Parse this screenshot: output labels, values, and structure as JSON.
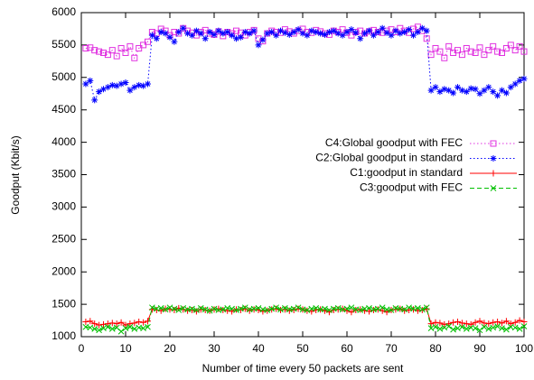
{
  "chart_data": {
    "type": "line",
    "xlabel": "Number of time every 50 packets are sent",
    "ylabel": "Goodput (Kbit/s)",
    "xlim": [
      0,
      100
    ],
    "ylim": [
      1000,
      6000
    ],
    "xticks": [
      0,
      10,
      20,
      30,
      40,
      50,
      60,
      70,
      80,
      90,
      100
    ],
    "yticks": [
      1000,
      1500,
      2000,
      2500,
      3000,
      3500,
      4000,
      4500,
      5000,
      5500,
      6000
    ],
    "legend": "upper right",
    "x": [
      1,
      2,
      3,
      4,
      5,
      6,
      7,
      8,
      9,
      10,
      11,
      12,
      13,
      14,
      15,
      16,
      17,
      18,
      19,
      20,
      21,
      22,
      23,
      24,
      25,
      26,
      27,
      28,
      29,
      30,
      31,
      32,
      33,
      34,
      35,
      36,
      37,
      38,
      39,
      40,
      41,
      42,
      43,
      44,
      45,
      46,
      47,
      48,
      49,
      50,
      51,
      52,
      53,
      54,
      55,
      56,
      57,
      58,
      59,
      60,
      61,
      62,
      63,
      64,
      65,
      66,
      67,
      68,
      69,
      70,
      71,
      72,
      73,
      74,
      75,
      76,
      77,
      78,
      79,
      80,
      81,
      82,
      83,
      84,
      85,
      86,
      87,
      88,
      89,
      90,
      91,
      92,
      93,
      94,
      95,
      96,
      97,
      98,
      99,
      100
    ],
    "series": [
      {
        "name": "C4:Global goodput with FEC",
        "color": "#e033e0",
        "dash": "dotted",
        "marker": "square",
        "values": [
          5450,
          5460,
          5420,
          5400,
          5380,
          5350,
          5420,
          5330,
          5450,
          5380,
          5480,
          5300,
          5450,
          5500,
          5550,
          5700,
          5680,
          5750,
          5720,
          5650,
          5700,
          5680,
          5760,
          5720,
          5690,
          5650,
          5700,
          5730,
          5680,
          5660,
          5710,
          5640,
          5700,
          5680,
          5720,
          5690,
          5650,
          5700,
          5730,
          5600,
          5560,
          5680,
          5720,
          5700,
          5690,
          5740,
          5710,
          5680,
          5720,
          5750,
          5700,
          5690,
          5730,
          5710,
          5680,
          5660,
          5720,
          5700,
          5740,
          5690,
          5650,
          5700,
          5720,
          5680,
          5710,
          5730,
          5700,
          5690,
          5720,
          5740,
          5700,
          5760,
          5720,
          5690,
          5750,
          5780,
          5720,
          5600,
          5350,
          5450,
          5400,
          5300,
          5480,
          5380,
          5420,
          5350,
          5450,
          5400,
          5380,
          5460,
          5350,
          5420,
          5480,
          5400,
          5380,
          5450,
          5500,
          5420,
          5480,
          5400
        ]
      },
      {
        "name": "C2:Global goodput in standard",
        "color": "#0000ff",
        "dash": "dotted",
        "marker": "star",
        "values": [
          4900,
          4950,
          4650,
          4780,
          4820,
          4850,
          4880,
          4870,
          4900,
          4920,
          4800,
          4850,
          4880,
          4870,
          4900,
          5650,
          5600,
          5700,
          5680,
          5620,
          5550,
          5700,
          5760,
          5680,
          5650,
          5720,
          5680,
          5600,
          5700,
          5660,
          5720,
          5680,
          5700,
          5650,
          5600,
          5620,
          5700,
          5680,
          5720,
          5500,
          5580,
          5680,
          5700,
          5650,
          5720,
          5690,
          5660,
          5700,
          5740,
          5680,
          5650,
          5720,
          5700,
          5680,
          5660,
          5700,
          5720,
          5680,
          5650,
          5700,
          5740,
          5690,
          5600,
          5680,
          5720,
          5650,
          5700,
          5760,
          5690,
          5650,
          5720,
          5680,
          5700,
          5740,
          5650,
          5700,
          5760,
          5720,
          4800,
          4850,
          4780,
          4820,
          4800,
          4760,
          4850,
          4800,
          4780,
          4830,
          4820,
          4750,
          4800,
          4850,
          4780,
          4720,
          4800,
          4760,
          4850,
          4900,
          4950,
          4980
        ]
      },
      {
        "name": "C1:goodput in standard",
        "color": "#ff0000",
        "dash": "solid",
        "marker": "plus",
        "values": [
          1230,
          1240,
          1200,
          1180,
          1190,
          1200,
          1210,
          1200,
          1220,
          1180,
          1200,
          1210,
          1230,
          1220,
          1240,
          1420,
          1410,
          1400,
          1430,
          1420,
          1410,
          1440,
          1420,
          1400,
          1410,
          1390,
          1420,
          1410,
          1400,
          1420,
          1430,
          1410,
          1400,
          1390,
          1420,
          1410,
          1430,
          1400,
          1420,
          1410,
          1390,
          1400,
          1420,
          1430,
          1410,
          1420,
          1400,
          1410,
          1430,
          1420,
          1400,
          1390,
          1410,
          1420,
          1400,
          1380,
          1410,
          1420,
          1430,
          1400,
          1380,
          1410,
          1420,
          1400,
          1390,
          1410,
          1420,
          1400,
          1380,
          1410,
          1420,
          1430,
          1400,
          1410,
          1420,
          1400,
          1410,
          1430,
          1200,
          1220,
          1210,
          1190,
          1200,
          1220,
          1230,
          1210,
          1200,
          1190,
          1220,
          1240,
          1210,
          1200,
          1220,
          1230,
          1210,
          1240,
          1200,
          1220,
          1250,
          1230
        ]
      },
      {
        "name": "C3:goodput with FEC",
        "color": "#00c000",
        "dash": "dashed",
        "marker": "cross",
        "values": [
          1150,
          1140,
          1120,
          1100,
          1130,
          1150,
          1120,
          1140,
          1080,
          1130,
          1150,
          1120,
          1140,
          1130,
          1150,
          1450,
          1430,
          1440,
          1420,
          1450,
          1430,
          1410,
          1440,
          1420,
          1430,
          1410,
          1440,
          1420,
          1400,
          1430,
          1410,
          1420,
          1440,
          1430,
          1410,
          1430,
          1450,
          1420,
          1430,
          1440,
          1420,
          1410,
          1430,
          1450,
          1420,
          1440,
          1420,
          1430,
          1450,
          1420,
          1410,
          1430,
          1440,
          1420,
          1430,
          1410,
          1430,
          1440,
          1420,
          1430,
          1450,
          1420,
          1410,
          1430,
          1440,
          1420,
          1430,
          1450,
          1420,
          1410,
          1440,
          1430,
          1420,
          1450,
          1430,
          1440,
          1420,
          1450,
          1130,
          1150,
          1120,
          1140,
          1160,
          1110,
          1130,
          1150,
          1120,
          1140,
          1130,
          1100,
          1150,
          1120,
          1140,
          1160,
          1130,
          1110,
          1150,
          1140,
          1120,
          1160
        ]
      }
    ]
  }
}
